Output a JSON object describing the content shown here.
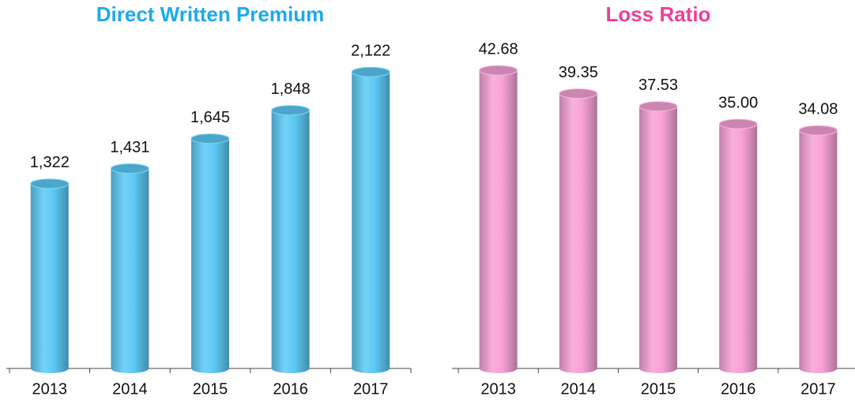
{
  "chart_data": [
    {
      "type": "bar",
      "title": "Direct Written Premium",
      "title_color": "#1ea8ec",
      "categories": [
        "2013",
        "2014",
        "2015",
        "2016",
        "2017"
      ],
      "values": [
        1322,
        1431,
        1645,
        1848,
        2122
      ],
      "value_labels": [
        "1,322",
        "1,431",
        "1,645",
        "1,848",
        "2,122"
      ],
      "color": "#5ccaf6",
      "ylim": [
        0,
        2400
      ]
    },
    {
      "type": "bar",
      "title": "Loss Ratio",
      "title_color": "#ef3e97",
      "categories": [
        "2013",
        "2014",
        "2015",
        "2016",
        "2017"
      ],
      "values": [
        42.68,
        39.35,
        37.53,
        35.0,
        34.08
      ],
      "value_labels": [
        "42.68",
        "39.35",
        "37.53",
        "35.00",
        "34.08"
      ],
      "color": "#f8a2d8",
      "ylim": [
        0,
        48
      ]
    }
  ]
}
